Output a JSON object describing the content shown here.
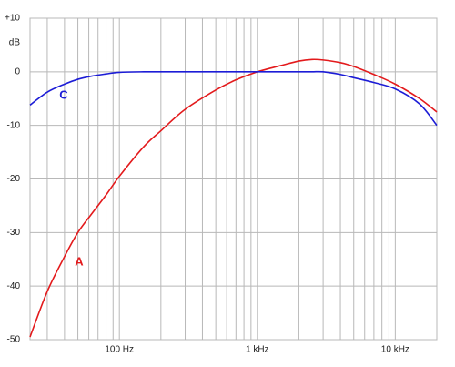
{
  "chart_data": {
    "type": "line",
    "y_unit": "dB",
    "log_x": true,
    "grid": true,
    "x": [
      22.5,
      30,
      40,
      50,
      63,
      80,
      100,
      150,
      200,
      300,
      500,
      700,
      1000,
      1500,
      2000,
      2500,
      3000,
      4000,
      5000,
      7000,
      10000,
      15000,
      20000
    ],
    "series": [
      {
        "name": "A",
        "color": "#e31a1c",
        "values": [
          -49.5,
          -41,
          -34.5,
          -30,
          -26.5,
          -23,
          -19.5,
          -14,
          -11,
          -7,
          -3.4,
          -1.5,
          0,
          1.2,
          2,
          2.3,
          2.2,
          1.7,
          1.0,
          -0.5,
          -2.3,
          -5,
          -7.5
        ]
      },
      {
        "name": "C",
        "color": "#1c1cd6",
        "values": [
          -6.2,
          -3.8,
          -2.3,
          -1.4,
          -0.8,
          -0.4,
          -0.1,
          0,
          0,
          0,
          0,
          0,
          0,
          0,
          0,
          0,
          0,
          -0.5,
          -1.1,
          -2,
          -3.2,
          -6,
          -10
        ]
      }
    ],
    "xlim": [
      22.5,
      20000
    ],
    "xticks": [
      {
        "value": 100,
        "label": "100 Hz"
      },
      {
        "value": 1000,
        "label": "1 kHz"
      },
      {
        "value": 10000,
        "label": "10 kHz"
      }
    ],
    "xminor": [
      30,
      40,
      50,
      60,
      70,
      80,
      90,
      200,
      300,
      400,
      500,
      600,
      700,
      800,
      900,
      2000,
      3000,
      4000,
      5000,
      6000,
      7000,
      8000,
      9000
    ],
    "ylim": [
      -50,
      10
    ],
    "yticks": [
      {
        "value": 10,
        "label": "+10"
      },
      0,
      -10,
      -20,
      -30,
      -40,
      -50
    ]
  }
}
